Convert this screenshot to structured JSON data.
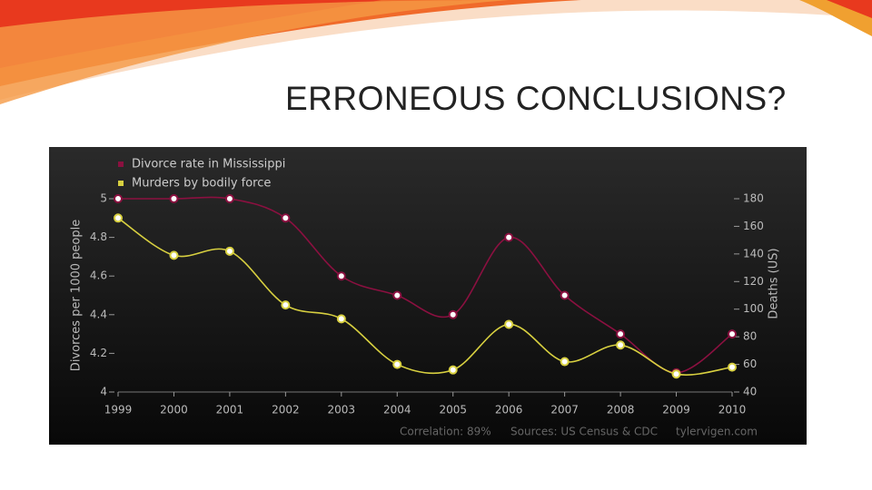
{
  "slide": {
    "title": "ERRONEOUS CONCLUSIONS?"
  },
  "chart_data": {
    "type": "line",
    "x": [
      1999,
      2000,
      2001,
      2002,
      2003,
      2004,
      2005,
      2006,
      2007,
      2008,
      2009,
      2010
    ],
    "xlim": [
      1999,
      2010
    ],
    "series": [
      {
        "name": "Divorce rate in Mississippi",
        "color": "#8b1040",
        "values": [
          5.0,
          5.0,
          5.0,
          4.9,
          4.6,
          4.5,
          4.4,
          4.8,
          4.5,
          4.3,
          4.1,
          4.3
        ]
      },
      {
        "name": "Murders by bodily force",
        "color": "#d8d040",
        "axis": "y2",
        "values": [
          166,
          139,
          142,
          103,
          93,
          60,
          56,
          89,
          62,
          74,
          53,
          58
        ]
      }
    ],
    "y_label": "Divorces per 1000 people",
    "y2_label": "Deaths (US)",
    "ylim": [
      4,
      5
    ],
    "yticks": [
      4,
      4.2,
      4.4,
      4.6,
      4.8,
      5
    ],
    "y2lim": [
      40,
      180
    ],
    "y2ticks": [
      40,
      60,
      80,
      100,
      120,
      140,
      160,
      180
    ],
    "legend": "top-left",
    "footer": [
      "Correlation: 89%",
      "Sources: US Census & CDC",
      "tylervigen.com"
    ]
  }
}
